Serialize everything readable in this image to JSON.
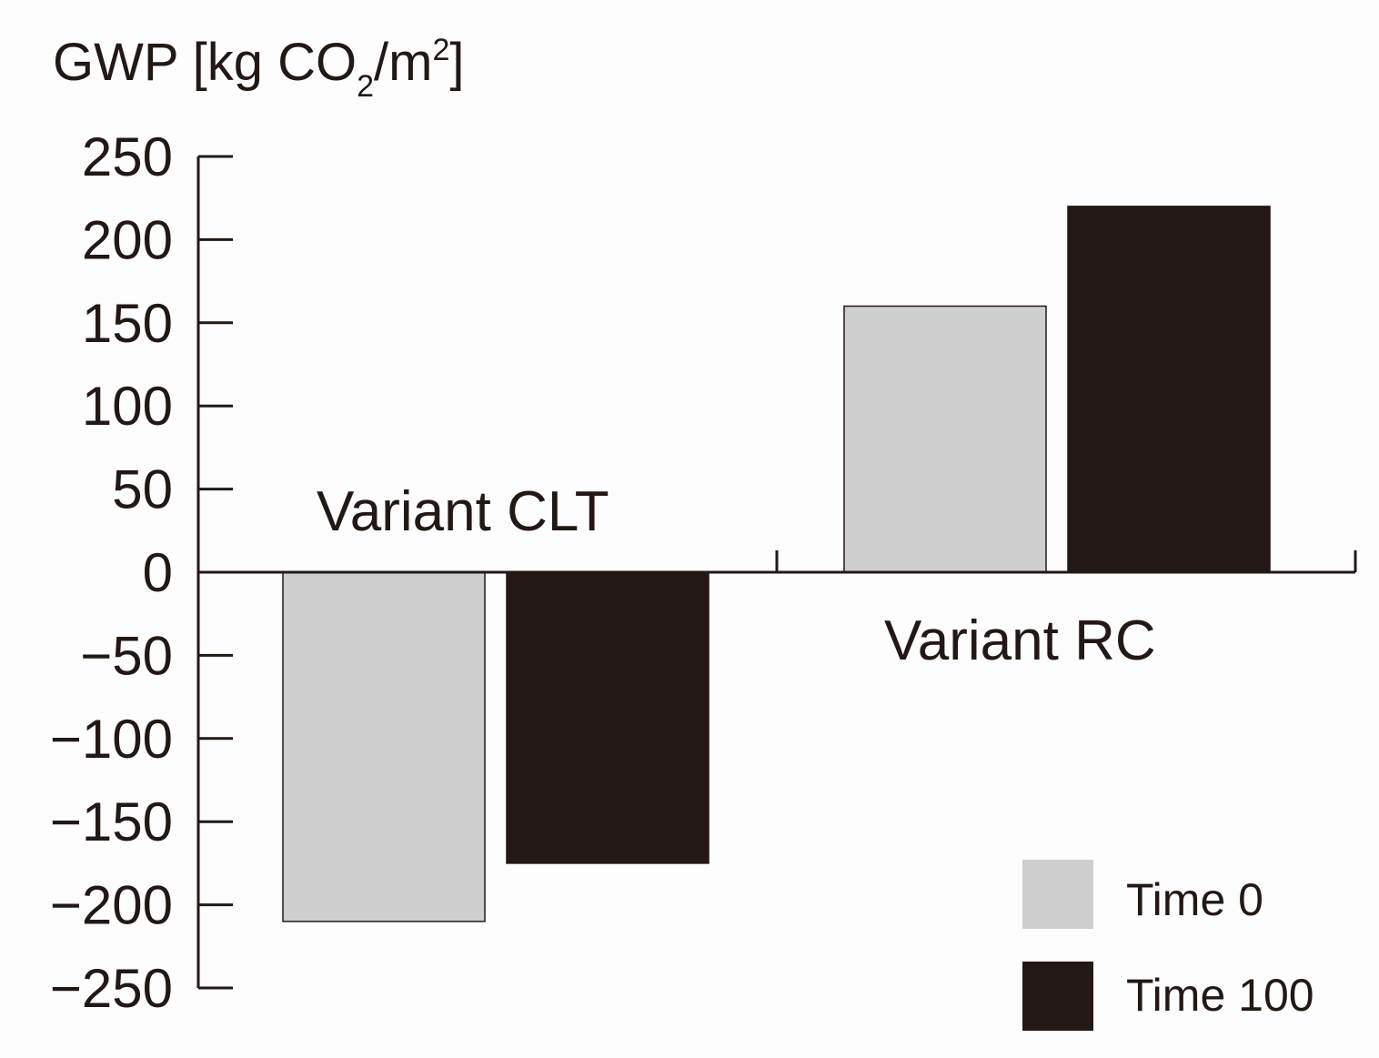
{
  "chart_data": {
    "type": "bar",
    "title_parts": {
      "main": "GWP [kg CO",
      "sub": "2",
      "mid": "/m",
      "sup": "2",
      "end": "]"
    },
    "categories": [
      "Variant CLT",
      "Variant RC"
    ],
    "series": [
      {
        "name": "Time 0",
        "values": [
          -210,
          160
        ],
        "color": "#cfcfcf"
      },
      {
        "name": "Time 100",
        "values": [
          -175,
          220
        ],
        "color": "#231815"
      }
    ],
    "yticks": [
      250,
      200,
      150,
      100,
      50,
      0,
      -50,
      -100,
      -150,
      -200,
      -250
    ],
    "ytick_labels": [
      "250",
      "200",
      "150",
      "100",
      "50",
      "0",
      "−50",
      "−100",
      "−150",
      "−200",
      "−250"
    ],
    "ylim": [
      -250,
      250
    ],
    "xlabel": "",
    "legend_position": "bottom-right"
  }
}
